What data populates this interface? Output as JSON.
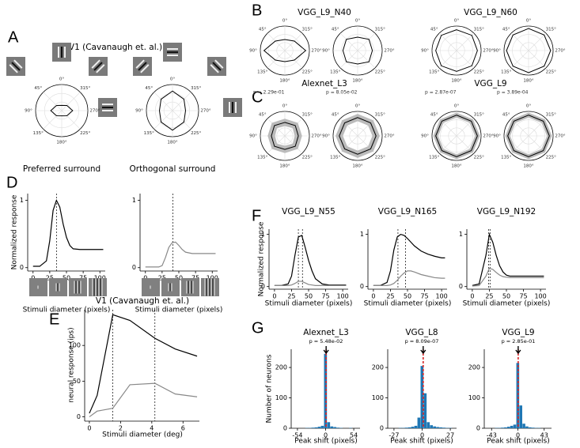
{
  "panel_labels": [
    "A",
    "B",
    "C",
    "D",
    "E",
    "F",
    "G"
  ],
  "group_titles": [
    "V1 (Cavanaugh et. al.)",
    "VGG_L9_N40",
    "VGG_L9_N60",
    "Alexnet_L3",
    "VGG_L9"
  ],
  "polar_theta_ticks": [
    {
      "value": 0,
      "label": "0°"
    },
    {
      "value": 45,
      "label": "45°"
    },
    {
      "value": 90,
      "label": "90°"
    },
    {
      "value": 135,
      "label": "135°"
    },
    {
      "value": 180,
      "label": "180°"
    },
    {
      "value": 225,
      "label": "225°"
    },
    {
      "value": 270,
      "label": "270°"
    },
    {
      "value": 315,
      "label": "315°"
    }
  ],
  "chart_data": [
    {
      "type": "polar",
      "caption": "Preferred surround",
      "rlim": [
        0,
        1
      ],
      "color": "#000000",
      "values": [
        0.2,
        0.28,
        0.42,
        0.28,
        0.2,
        0.28,
        0.42,
        0.28
      ]
    },
    {
      "type": "polar",
      "caption": "Orthogonal surround",
      "rlim": [
        0,
        1
      ],
      "color": "#000000",
      "values": [
        0.75,
        0.62,
        0.5,
        0.62,
        0.75,
        0.62,
        0.5,
        0.62
      ]
    },
    {
      "type": "polar",
      "rlim": [
        0,
        1
      ],
      "color": "#000000",
      "values": [
        0.45,
        0.55,
        0.85,
        0.55,
        0.45,
        0.55,
        0.85,
        0.55
      ]
    },
    {
      "type": "polar",
      "rlim": [
        0,
        1
      ],
      "color": "#000000",
      "values": [
        0.55,
        0.65,
        0.6,
        0.65,
        0.55,
        0.65,
        0.6,
        0.65
      ]
    },
    {
      "type": "polar",
      "rlim": [
        0,
        1
      ],
      "color": "#000000",
      "values": [
        0.85,
        0.88,
        0.85,
        0.88,
        0.85,
        0.88,
        0.85,
        0.88
      ]
    },
    {
      "type": "polar",
      "rlim": [
        0,
        1
      ],
      "color": "#000000",
      "values": [
        0.9,
        0.9,
        0.9,
        0.9,
        0.9,
        0.9,
        0.9,
        0.9
      ]
    },
    {
      "type": "polar",
      "subtitle": "p = 2.29e-01",
      "rlim": [
        0,
        1
      ],
      "color": "#000000",
      "band_color": "#bbbbbb",
      "values": [
        0.55,
        0.6,
        0.55,
        0.6,
        0.55,
        0.6,
        0.55,
        0.6
      ],
      "error": [
        0.15,
        0.15,
        0.15,
        0.15,
        0.15,
        0.15,
        0.15,
        0.15
      ]
    },
    {
      "type": "polar",
      "subtitle": "p = 8.05e-02",
      "rlim": [
        0,
        1
      ],
      "color": "#000000",
      "band_color": "#bbbbbb",
      "values": [
        0.75,
        0.75,
        0.75,
        0.75,
        0.75,
        0.75,
        0.75,
        0.75
      ],
      "error": [
        0.15,
        0.15,
        0.15,
        0.15,
        0.15,
        0.15,
        0.15,
        0.15
      ]
    },
    {
      "type": "polar",
      "subtitle": "p = 2.87e-07",
      "rlim": [
        0,
        1
      ],
      "color": "#000000",
      "band_color": "#bbbbbb",
      "values": [
        0.85,
        0.85,
        0.85,
        0.85,
        0.85,
        0.85,
        0.85,
        0.85
      ],
      "error": [
        0.1,
        0.1,
        0.1,
        0.1,
        0.1,
        0.1,
        0.1,
        0.1
      ]
    },
    {
      "type": "polar",
      "subtitle": "p = 3.89e-04",
      "rlim": [
        0,
        1
      ],
      "color": "#000000",
      "band_color": "#bbbbbb",
      "values": [
        0.85,
        0.85,
        0.85,
        0.85,
        0.85,
        0.85,
        0.85,
        0.85
      ],
      "error": [
        0.1,
        0.1,
        0.1,
        0.1,
        0.1,
        0.1,
        0.1,
        0.1
      ]
    },
    {
      "type": "line",
      "y_label": "Normalized response",
      "x_label": "Stimuli diameter (pixels)",
      "xlim": [
        -8,
        108
      ],
      "ylim": [
        -0.05,
        1.1
      ],
      "xticks": [
        0,
        25,
        50,
        75,
        100
      ],
      "yticks": [
        0,
        1
      ],
      "vlines": [
        35
      ],
      "x": [
        0,
        10,
        20,
        25,
        30,
        35,
        40,
        45,
        50,
        55,
        60,
        70,
        80,
        90,
        100,
        105
      ],
      "series": [
        {
          "color": "#000000",
          "values": [
            0.02,
            0.02,
            0.1,
            0.4,
            0.85,
            1.0,
            0.9,
            0.65,
            0.45,
            0.33,
            0.28,
            0.27,
            0.27,
            0.27,
            0.27,
            0.27
          ]
        }
      ]
    },
    {
      "type": "line",
      "x_label": "Stimuli diameter (pixels)",
      "xlim": [
        -8,
        108
      ],
      "ylim": [
        -0.05,
        1.1
      ],
      "xticks": [
        0,
        25,
        50,
        75,
        100
      ],
      "yticks": [
        0,
        1
      ],
      "vlines": [
        41
      ],
      "x": [
        0,
        10,
        20,
        25,
        30,
        35,
        40,
        45,
        50,
        55,
        60,
        70,
        80,
        90,
        100,
        105
      ],
      "series": [
        {
          "color": "#888888",
          "values": [
            0.01,
            0.01,
            0.01,
            0.03,
            0.15,
            0.3,
            0.37,
            0.38,
            0.33,
            0.27,
            0.23,
            0.21,
            0.21,
            0.21,
            0.21,
            0.21
          ]
        }
      ]
    },
    {
      "type": "line",
      "title": "V1 (Cavanaugh et. al.)",
      "y_label": "neural response (ips)",
      "x_label": "Stimuli diameter (deg)",
      "xlim": [
        -0.3,
        7.05
      ],
      "ylim": [
        -6,
        150
      ],
      "xticks": [
        0,
        2,
        4,
        6
      ],
      "yticks": [
        0,
        50,
        100
      ],
      "vlines": [
        1.5,
        4.2
      ],
      "x": [
        0,
        0.5,
        1.5,
        2.6,
        4.2,
        5.5,
        6.9
      ],
      "series": [
        {
          "color": "#000000",
          "values": [
            5,
            30,
            143,
            135,
            110,
            95,
            85
          ]
        },
        {
          "color": "#888888",
          "values": [
            0,
            8,
            12,
            45,
            47,
            32,
            28
          ]
        }
      ]
    },
    {
      "type": "line",
      "title": "VGG_L9_N55",
      "y_label": "Normalized response",
      "x_label": "Stimuli diameter (pixels)",
      "xlim": [
        -8,
        108
      ],
      "ylim": [
        -0.05,
        1.1
      ],
      "xticks": [
        0,
        25,
        50,
        75,
        100
      ],
      "yticks": [
        0,
        1
      ],
      "vlines": [
        35,
        41
      ],
      "x": [
        0,
        10,
        20,
        25,
        30,
        35,
        40,
        45,
        50,
        55,
        60,
        70,
        80,
        90,
        100,
        105
      ],
      "series": [
        {
          "color": "#000000",
          "values": [
            0.02,
            0.02,
            0.05,
            0.2,
            0.6,
            0.95,
            0.98,
            0.75,
            0.5,
            0.3,
            0.15,
            0.05,
            0.03,
            0.03,
            0.03,
            0.03
          ]
        },
        {
          "color": "#888888",
          "values": [
            0.02,
            0.02,
            0.02,
            0.03,
            0.06,
            0.1,
            0.1,
            0.07,
            0.04,
            0.03,
            0.02,
            0.02,
            0.02,
            0.02,
            0.02,
            0.02
          ]
        }
      ]
    },
    {
      "type": "line",
      "title": "VGG_L9_N165",
      "x_label": "Stimuli diameter (pixels)",
      "xlim": [
        -8,
        108
      ],
      "ylim": [
        -0.05,
        1.1
      ],
      "xticks": [
        0,
        25,
        50,
        75,
        100
      ],
      "yticks": [
        0,
        1
      ],
      "vlines": [
        36,
        47
      ],
      "x": [
        0,
        10,
        20,
        25,
        30,
        35,
        40,
        45,
        50,
        55,
        60,
        70,
        80,
        90,
        100,
        105
      ],
      "series": [
        {
          "color": "#000000",
          "values": [
            0.02,
            0.02,
            0.08,
            0.3,
            0.7,
            0.95,
            1.0,
            0.98,
            0.92,
            0.85,
            0.78,
            0.68,
            0.62,
            0.58,
            0.55,
            0.55
          ]
        },
        {
          "color": "#888888",
          "values": [
            0.02,
            0.02,
            0.02,
            0.03,
            0.06,
            0.12,
            0.2,
            0.26,
            0.3,
            0.3,
            0.28,
            0.23,
            0.2,
            0.17,
            0.16,
            0.16
          ]
        }
      ]
    },
    {
      "type": "line",
      "title": "VGG_L9_N192",
      "x_label": "Stimuli diameter (pixels)",
      "xlim": [
        -8,
        108
      ],
      "ylim": [
        -0.05,
        1.1
      ],
      "xticks": [
        0,
        25,
        50,
        75,
        100
      ],
      "yticks": [
        0,
        1
      ],
      "vlines": [
        24,
        26
      ],
      "x": [
        0,
        10,
        20,
        25,
        30,
        35,
        40,
        45,
        50,
        55,
        60,
        70,
        80,
        90,
        100,
        105
      ],
      "series": [
        {
          "color": "#000000",
          "values": [
            0.02,
            0.05,
            0.6,
            1.0,
            0.85,
            0.6,
            0.4,
            0.28,
            0.22,
            0.2,
            0.2,
            0.2,
            0.2,
            0.2,
            0.2,
            0.2
          ]
        },
        {
          "color": "#888888",
          "values": [
            0.01,
            0.02,
            0.2,
            0.35,
            0.33,
            0.27,
            0.22,
            0.19,
            0.18,
            0.17,
            0.17,
            0.17,
            0.17,
            0.17,
            0.17,
            0.17
          ]
        }
      ]
    },
    {
      "type": "histogram",
      "title": "Alexnet_L3",
      "subtitle": "p = 5.48e-02",
      "y_label": "Number of neurons",
      "x_label": "Peak shift (pixels)",
      "color": "#1f77b4",
      "mean_color": "#d62728",
      "mean": 1,
      "xlim": [
        -66,
        66
      ],
      "ylim": [
        0,
        260
      ],
      "xticks": [
        -54,
        0,
        54
      ],
      "yticks": [
        0,
        100,
        200
      ],
      "bins": [
        -63,
        -57,
        -51,
        -45,
        -39,
        -33,
        -27,
        -21,
        -15,
        -9,
        -3,
        3,
        9,
        15,
        21,
        27,
        33,
        39,
        45,
        51,
        57,
        63
      ],
      "counts": [
        0,
        0,
        0,
        0,
        1,
        1,
        2,
        3,
        5,
        8,
        245,
        20,
        6,
        4,
        2,
        1,
        0,
        0,
        1,
        0,
        0
      ]
    },
    {
      "type": "histogram",
      "title": "VGG_L8",
      "subtitle": "p = 8.09e-07",
      "x_label": "Peak shift (pixels)",
      "color": "#1f77b4",
      "mean_color": "#d62728",
      "mean": 1,
      "xlim": [
        -33,
        33
      ],
      "ylim": [
        0,
        260
      ],
      "xticks": [
        -27,
        0,
        27
      ],
      "yticks": [
        0,
        100,
        200
      ],
      "bins": [
        -31.5,
        -28.5,
        -25.5,
        -22.5,
        -19.5,
        -16.5,
        -13.5,
        -10.5,
        -7.5,
        -4.5,
        -1.5,
        1.5,
        4.5,
        7.5,
        10.5,
        13.5,
        16.5,
        19.5,
        22.5,
        25.5,
        28.5,
        31.5
      ],
      "counts": [
        0,
        0,
        0,
        1,
        1,
        2,
        3,
        5,
        8,
        35,
        205,
        115,
        20,
        10,
        6,
        4,
        3,
        2,
        1,
        1,
        0
      ]
    },
    {
      "type": "histogram",
      "title": "VGG_L9",
      "subtitle": "p = 2.85e-01",
      "x_label": "Peak shift (pixels)",
      "color": "#1f77b4",
      "mean_color": "#d62728",
      "mean": 0.5,
      "xlim": [
        -55,
        55
      ],
      "ylim": [
        0,
        260
      ],
      "xticks": [
        -43,
        0,
        43
      ],
      "yticks": [
        0,
        100,
        200
      ],
      "bins": [
        -52.5,
        -47.5,
        -42.5,
        -37.5,
        -32.5,
        -27.5,
        -22.5,
        -17.5,
        -12.5,
        -7.5,
        -2.5,
        2.5,
        7.5,
        12.5,
        17.5,
        22.5,
        27.5,
        32.5,
        37.5,
        42.5,
        47.5,
        52.5
      ],
      "counts": [
        0,
        0,
        0,
        1,
        1,
        2,
        3,
        5,
        8,
        12,
        215,
        75,
        15,
        6,
        3,
        2,
        1,
        1,
        0,
        0,
        0
      ]
    }
  ]
}
